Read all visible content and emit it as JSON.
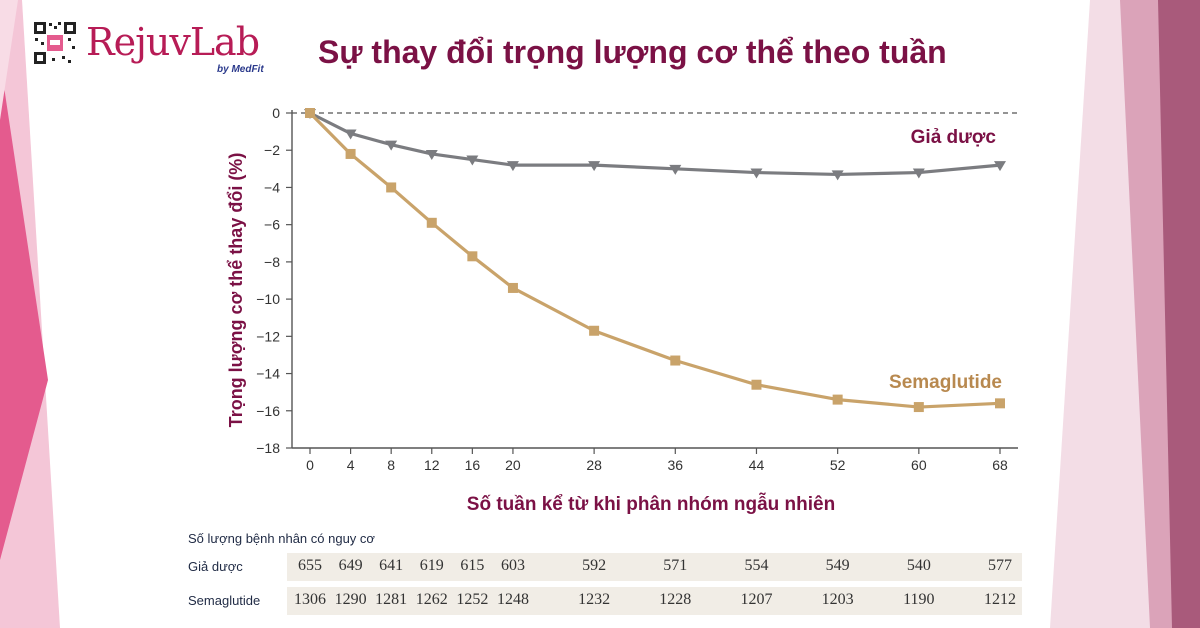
{
  "header": {
    "brand": "RejuvLab",
    "byline": "by MedFit",
    "title": "Sự thay đổi trọng lượng cơ thể theo tuần"
  },
  "colors": {
    "title": "#7b1145",
    "placebo": "#7b7c80",
    "semaglutide": "#c9a36a",
    "placebo_label": "#7b1145",
    "semaglutide_label": "#b8894f",
    "axis_label": "#7b1145",
    "side_pink": "#e45b8e"
  },
  "chart_data": {
    "type": "line",
    "xlabel": "Số tuần kể từ khi phân nhóm ngẫu nhiên",
    "ylabel": "Trọng lượng cơ thể thay đổi (%)",
    "xlim": [
      0,
      68
    ],
    "ylim": [
      -18,
      0
    ],
    "x_ticks": [
      0,
      4,
      8,
      12,
      16,
      20,
      28,
      36,
      44,
      52,
      60,
      68
    ],
    "y_ticks": [
      0,
      -2,
      -4,
      -6,
      -8,
      -10,
      -12,
      -14,
      -16,
      -18
    ],
    "reference_line": 0,
    "grid": false,
    "series": [
      {
        "name": "Giả dược",
        "marker": "triangle-down",
        "x": [
          0,
          4,
          8,
          12,
          16,
          20,
          28,
          36,
          44,
          52,
          60,
          68
        ],
        "values": [
          0,
          -1.1,
          -1.7,
          -2.2,
          -2.5,
          -2.8,
          -2.8,
          -3.0,
          -3.2,
          -3.3,
          -3.2,
          -2.8
        ]
      },
      {
        "name": "Semaglutide",
        "marker": "square",
        "x": [
          0,
          4,
          8,
          12,
          16,
          20,
          28,
          36,
          44,
          52,
          60,
          68
        ],
        "values": [
          0,
          -2.2,
          -4.0,
          -5.9,
          -7.7,
          -9.4,
          -11.7,
          -13.3,
          -14.6,
          -15.4,
          -15.8,
          -15.6
        ]
      }
    ]
  },
  "risk_table": {
    "title": "Số lượng bệnh nhân có nguy cơ",
    "rows": [
      {
        "label": "Giả dược",
        "values": [
          "655",
          "649",
          "641",
          "619",
          "615",
          "603",
          "592",
          "571",
          "554",
          "549",
          "540",
          "577"
        ]
      },
      {
        "label": "Semaglutide",
        "values": [
          "1306",
          "1290",
          "1281",
          "1262",
          "1252",
          "1248",
          "1232",
          "1228",
          "1207",
          "1203",
          "1190",
          "1212"
        ]
      }
    ]
  }
}
